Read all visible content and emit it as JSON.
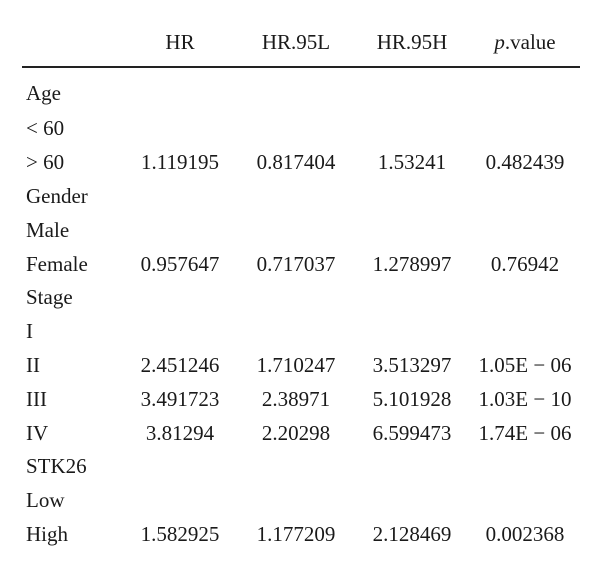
{
  "header": {
    "col_label": "",
    "col_hr": "HR",
    "col_95l": "HR.95L",
    "col_95h": "HR.95H",
    "col_p_italic": "p",
    "col_p_rest": ".value"
  },
  "rows": [
    {
      "label": "Age",
      "hr": "",
      "l95": "",
      "h95": "",
      "p": ""
    },
    {
      "label": "< 60",
      "hr": "",
      "l95": "",
      "h95": "",
      "p": ""
    },
    {
      "label": "> 60",
      "hr": "1.119195",
      "l95": "0.817404",
      "h95": "1.53241",
      "p": "0.482439"
    },
    {
      "label": "Gender",
      "hr": "",
      "l95": "",
      "h95": "",
      "p": ""
    },
    {
      "label": "Male",
      "hr": "",
      "l95": "",
      "h95": "",
      "p": ""
    },
    {
      "label": "Female",
      "hr": "0.957647",
      "l95": "0.717037",
      "h95": "1.278997",
      "p": "0.76942"
    },
    {
      "label": "Stage",
      "hr": "",
      "l95": "",
      "h95": "",
      "p": ""
    },
    {
      "label": "I",
      "hr": "",
      "l95": "",
      "h95": "",
      "p": ""
    },
    {
      "label": "II",
      "hr": "2.451246",
      "l95": "1.710247",
      "h95": "3.513297",
      "p": "1.05E − 06"
    },
    {
      "label": "III",
      "hr": "3.491723",
      "l95": "2.38971",
      "h95": "5.101928",
      "p": "1.03E − 10"
    },
    {
      "label": "IV",
      "hr": "3.81294",
      "l95": "2.20298",
      "h95": "6.599473",
      "p": "1.74E − 06"
    },
    {
      "label": "STK26",
      "hr": "",
      "l95": "",
      "h95": "",
      "p": ""
    },
    {
      "label": "Low",
      "hr": "",
      "l95": "",
      "h95": "",
      "p": ""
    },
    {
      "label": "High",
      "hr": "1.582925",
      "l95": "1.177209",
      "h95": "2.128469",
      "p": "0.002368"
    }
  ]
}
